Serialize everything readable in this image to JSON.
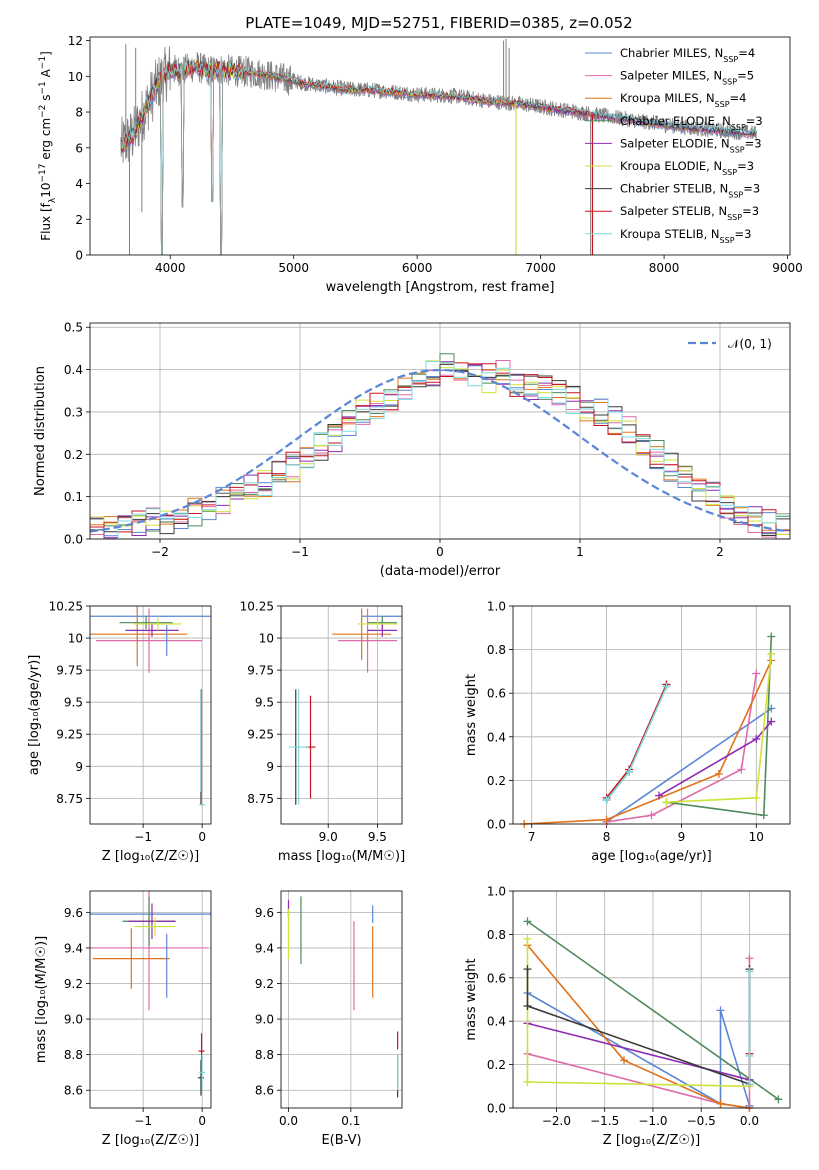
{
  "figure": {
    "title": "PLATE=1049, MJD=52751, FIBERID=0385, z=0.052"
  },
  "colors": {
    "chabrier_miles": "#5b86d6",
    "salpeter_miles": "#e06aa8",
    "kroupa_miles": "#e0731c",
    "chabrier_elodie": "#4f8a5c",
    "salpeter_elodie": "#8e2bb0",
    "kroupa_elodie": "#cfe23a",
    "chabrier_stelib": "#3a3a3a",
    "salpeter_stelib": "#c8141e",
    "kroupa_stelib": "#7fd9dc",
    "data": "#808080",
    "normal": "#5b86d6"
  },
  "legend": [
    {
      "key": "chabrier_miles",
      "pre": "Chabrier MILES, N",
      "sub": "SSP",
      "post": "=4"
    },
    {
      "key": "salpeter_miles",
      "pre": "Salpeter MILES, N",
      "sub": "SSP",
      "post": "=5"
    },
    {
      "key": "kroupa_miles",
      "pre": "Kroupa MILES, N",
      "sub": "SSP",
      "post": "=4"
    },
    {
      "key": "chabrier_elodie",
      "pre": "Chabrier ELODIE, N",
      "sub": "SSP",
      "post": "=3"
    },
    {
      "key": "salpeter_elodie",
      "pre": "Salpeter ELODIE, N",
      "sub": "SSP",
      "post": "=3"
    },
    {
      "key": "kroupa_elodie",
      "pre": "Kroupa ELODIE, N",
      "sub": "SSP",
      "post": "=3"
    },
    {
      "key": "chabrier_stelib",
      "pre": "Chabrier STELIB, N",
      "sub": "SSP",
      "post": "=3"
    },
    {
      "key": "salpeter_stelib",
      "pre": "Salpeter STELIB, N",
      "sub": "SSP",
      "post": "=3"
    },
    {
      "key": "kroupa_stelib",
      "pre": "Kroupa STELIB, N",
      "sub": "SSP",
      "post": "=3"
    }
  ],
  "chart_data": [
    {
      "id": "spectrum",
      "type": "line",
      "xlabel": "wavelength [Angstrom, rest frame]",
      "ylabel": "Flux [f",
      "ylabel_parts": [
        "Flux [f",
        "λ",
        "10",
        "−17",
        " erg cm",
        "−2",
        " s",
        "−1",
        " A",
        "−1",
        "]"
      ],
      "xlim": [
        3350,
        9020
      ],
      "ylim": [
        0,
        12.2
      ],
      "xticks": [
        4000,
        5000,
        6000,
        7000,
        8000,
        9000
      ],
      "yticks": [
        0,
        2,
        4,
        6,
        8,
        10,
        12
      ],
      "grid": false,
      "legend_position": "right",
      "data_range": [
        3600,
        8750
      ],
      "model_anchors": {
        "x": [
          3600,
          3700,
          3800,
          3900,
          4000,
          4100,
          4200,
          4300,
          4400,
          4500,
          4700,
          4900,
          5100,
          5400,
          5700,
          6000,
          6300,
          6600,
          6900,
          7200,
          7500,
          7800,
          8100,
          8400,
          8750
        ],
        "y": [
          6.1,
          6.7,
          8.2,
          9.6,
          10.4,
          10.3,
          10.6,
          10.3,
          10.4,
          10.3,
          10.2,
          9.9,
          9.6,
          9.3,
          9.2,
          9.0,
          8.9,
          8.6,
          8.4,
          8.1,
          7.8,
          7.5,
          7.2,
          7.0,
          6.8
        ]
      },
      "dips": [
        {
          "x": 3934,
          "y": 0.0
        },
        {
          "x": 4102,
          "y": 2.7
        },
        {
          "x": 4340,
          "y": 3.0
        },
        {
          "x": 4415,
          "y": 0.0
        }
      ],
      "data_spikes": [
        {
          "x": 3640,
          "y": 11.8
        },
        {
          "x": 3670,
          "y": 0.0
        },
        {
          "x": 3720,
          "y": 11.6
        },
        {
          "x": 3770,
          "y": 2.4
        },
        {
          "x": 6700,
          "y": 12.0
        },
        {
          "x": 6720,
          "y": 12.1
        },
        {
          "x": 6745,
          "y": 11.6
        },
        {
          "x": 7405,
          "y": 0.0
        }
      ],
      "cut_lines": [
        {
          "key": "kroupa_elodie",
          "x": 6800
        },
        {
          "key": "salpeter_stelib",
          "x": 7420
        }
      ]
    },
    {
      "id": "residual_histogram",
      "type": "histogram",
      "xlabel": "(data-model)/error",
      "ylabel": "Normed distribution",
      "xlim": [
        -2.5,
        2.5
      ],
      "ylim": [
        0,
        0.51
      ],
      "xticks": [
        -2,
        -1,
        0,
        1,
        2
      ],
      "yticks": [
        0.0,
        0.1,
        0.2,
        0.3,
        0.4,
        0.5
      ],
      "grid": true,
      "legend": [
        {
          "label": "𝒩(0, 1)",
          "style": "dashed"
        }
      ],
      "legend_position": "top-right",
      "bin_width": 0.1,
      "bins_start": -2.5,
      "base_heights": [
        0.02,
        0.025,
        0.03,
        0.035,
        0.04,
        0.045,
        0.055,
        0.065,
        0.075,
        0.09,
        0.1,
        0.12,
        0.135,
        0.15,
        0.17,
        0.19,
        0.22,
        0.24,
        0.27,
        0.3,
        0.31,
        0.33,
        0.35,
        0.37,
        0.39,
        0.41,
        0.4,
        0.39,
        0.38,
        0.39,
        0.37,
        0.36,
        0.35,
        0.34,
        0.33,
        0.31,
        0.3,
        0.28,
        0.26,
        0.22,
        0.2,
        0.17,
        0.15,
        0.12,
        0.1,
        0.08,
        0.06,
        0.045,
        0.035,
        0.025
      ]
    },
    {
      "id": "age_vs_Z",
      "type": "errorbar",
      "xlabel": "Z [log₁₀(Z/Z☉)]",
      "ylabel": "age [log₁₀(age/yr)]",
      "xlim": [
        -1.9,
        0.15
      ],
      "ylim": [
        8.55,
        10.25
      ],
      "xticks": [
        -1,
        0
      ],
      "yticks": [
        8.75,
        9.0,
        9.25,
        9.5,
        9.75,
        10.0,
        10.25
      ],
      "grid": true,
      "points": [
        {
          "key": "chabrier_miles",
          "x": -0.15,
          "xerr": 1.75,
          "y": 10.17,
          "yerr": 0.0
        },
        {
          "key": "salpeter_miles",
          "x": -0.9,
          "xerr": 0.9,
          "y": 9.98,
          "yerr": 0.25
        },
        {
          "key": "kroupa_miles",
          "x": -1.1,
          "xerr": 0.85,
          "y": 10.03,
          "yerr": 0.25
        },
        {
          "key": "chabrier_elodie",
          "x": -0.95,
          "xerr": 0.45,
          "y": 10.12,
          "yerr": 0.05
        },
        {
          "key": "salpeter_elodie",
          "x": -0.85,
          "xerr": 0.45,
          "y": 10.06,
          "yerr": 0.05
        },
        {
          "key": "kroupa_elodie",
          "x": -0.75,
          "xerr": 0.4,
          "y": 10.11,
          "yerr": 0.05
        },
        {
          "key": "chabrier_stelib",
          "x": -0.02,
          "xerr": 0.0,
          "y": 9.15,
          "yerr": 0.45
        },
        {
          "key": "salpeter_stelib",
          "x": -0.01,
          "xerr": 0.0,
          "y": 9.2,
          "yerr": 0.4
        },
        {
          "key": "kroupa_stelib",
          "x": 0.0,
          "xerr": 0.05,
          "y": 8.7,
          "yerr": 0.0
        },
        {
          "key": "chabrier_miles",
          "x": -0.6,
          "xerr": 0.0,
          "y": 9.98,
          "yerr": 0.12
        },
        {
          "key": "kroupa_stelib",
          "x": -0.02,
          "xerr": 0.0,
          "y": 9.2,
          "yerr": 0.4
        }
      ]
    },
    {
      "id": "age_vs_mass",
      "type": "errorbar",
      "xlabel": "mass [log₁₀(M/M☉)]",
      "ylabel": "",
      "xlim": [
        8.52,
        9.75
      ],
      "ylim": [
        8.55,
        10.25
      ],
      "xticks": [
        9.0,
        9.5
      ],
      "yticks": [
        8.75,
        9.0,
        9.25,
        9.5,
        9.75,
        10.0,
        10.25
      ],
      "grid": true,
      "points": [
        {
          "key": "chabrier_miles",
          "x": 9.59,
          "xerr": 0.25,
          "y": 10.17,
          "yerr": 0.0
        },
        {
          "key": "salpeter_miles",
          "x": 9.4,
          "xerr": 0.3,
          "y": 9.98,
          "yerr": 0.25
        },
        {
          "key": "kroupa_miles",
          "x": 9.34,
          "xerr": 0.3,
          "y": 10.03,
          "yerr": 0.2
        },
        {
          "key": "chabrier_elodie",
          "x": 9.55,
          "xerr": 0.15,
          "y": 10.12,
          "yerr": 0.05
        },
        {
          "key": "salpeter_elodie",
          "x": 9.55,
          "xerr": 0.15,
          "y": 10.06,
          "yerr": 0.05
        },
        {
          "key": "kroupa_elodie",
          "x": 9.5,
          "xerr": 0.2,
          "y": 10.11,
          "yerr": 0.05
        },
        {
          "key": "chabrier_stelib",
          "x": 8.67,
          "xerr": 0.0,
          "y": 9.15,
          "yerr": 0.45
        },
        {
          "key": "salpeter_stelib",
          "x": 8.82,
          "xerr": 0.05,
          "y": 9.15,
          "yerr": 0.4
        },
        {
          "key": "kroupa_stelib",
          "x": 8.7,
          "xerr": 0.1,
          "y": 9.15,
          "yerr": 0.45
        }
      ]
    },
    {
      "id": "mass_weight_vs_age",
      "type": "line",
      "xlabel": "age [log₁₀(age/yr)]",
      "ylabel": "mass weight",
      "xlim": [
        6.75,
        10.45
      ],
      "ylim": [
        0,
        1.0
      ],
      "xticks": [
        7,
        8,
        9,
        10
      ],
      "yticks": [
        0.0,
        0.2,
        0.4,
        0.6,
        0.8,
        1.0
      ],
      "grid": true,
      "series": [
        {
          "key": "chabrier_miles",
          "x": [
            8.0,
            10.2
          ],
          "y": [
            0.01,
            0.53
          ]
        },
        {
          "key": "salpeter_miles",
          "x": [
            8.0,
            8.6,
            9.8,
            10.0
          ],
          "y": [
            0.01,
            0.04,
            0.25,
            0.69
          ]
        },
        {
          "key": "kroupa_miles",
          "x": [
            6.9,
            8.0,
            9.5,
            10.2
          ],
          "y": [
            0.0,
            0.02,
            0.23,
            0.75
          ]
        },
        {
          "key": "chabrier_elodie",
          "x": [
            8.8,
            10.1,
            10.2
          ],
          "y": [
            0.1,
            0.04,
            0.86
          ]
        },
        {
          "key": "salpeter_elodie",
          "x": [
            8.7,
            10.0,
            10.2
          ],
          "y": [
            0.13,
            0.39,
            0.47
          ]
        },
        {
          "key": "kroupa_elodie",
          "x": [
            8.8,
            10.0,
            10.2
          ],
          "y": [
            0.1,
            0.12,
            0.78
          ]
        },
        {
          "key": "chabrier_stelib",
          "x": [
            8.0,
            8.3,
            8.8
          ],
          "y": [
            0.11,
            0.24,
            0.64
          ]
        },
        {
          "key": "salpeter_stelib",
          "x": [
            8.0,
            8.3,
            8.8
          ],
          "y": [
            0.12,
            0.25,
            0.64
          ]
        },
        {
          "key": "kroupa_stelib",
          "x": [
            8.0,
            8.3,
            8.8
          ],
          "y": [
            0.11,
            0.24,
            0.63
          ]
        }
      ]
    },
    {
      "id": "mass_vs_Z",
      "type": "errorbar",
      "xlabel": "Z [log₁₀(Z/Z☉)]",
      "ylabel": "mass [log₁₀(M/M☉)]",
      "xlim": [
        -1.9,
        0.15
      ],
      "ylim": [
        8.5,
        9.72
      ],
      "xticks": [
        -1,
        0
      ],
      "yticks": [
        8.6,
        8.8,
        9.0,
        9.2,
        9.4,
        9.6
      ],
      "grid": true,
      "points": [
        {
          "key": "chabrier_miles",
          "x": -0.85,
          "xerr": 1.05,
          "y": 9.59,
          "yerr": 0.0
        },
        {
          "key": "salpeter_miles",
          "x": -0.9,
          "xerr": 1.0,
          "y": 9.4,
          "yerr": 0.35
        },
        {
          "key": "kroupa_miles",
          "x": -1.2,
          "xerr": 0.65,
          "y": 9.34,
          "yerr": 0.17
        },
        {
          "key": "chabrier_elodie",
          "x": -0.9,
          "xerr": 0.45,
          "y": 9.55,
          "yerr": 0.14
        },
        {
          "key": "salpeter_elodie",
          "x": -0.85,
          "xerr": 0.4,
          "y": 9.55,
          "yerr": 0.1
        },
        {
          "key": "kroupa_elodie",
          "x": -0.8,
          "xerr": 0.35,
          "y": 9.52,
          "yerr": 0.05
        },
        {
          "key": "chabrier_stelib",
          "x": -0.02,
          "xerr": 0.05,
          "y": 8.67,
          "yerr": 0.1
        },
        {
          "key": "salpeter_stelib",
          "x": -0.01,
          "xerr": 0.05,
          "y": 8.82,
          "yerr": 0.1
        },
        {
          "key": "kroupa_stelib",
          "x": 0.0,
          "xerr": 0.05,
          "y": 8.7,
          "yerr": 0.1
        },
        {
          "key": "chabrier_miles",
          "x": -0.6,
          "xerr": 0.0,
          "y": 9.3,
          "yerr": 0.18
        }
      ]
    },
    {
      "id": "mass_vs_ebv",
      "type": "errorbar",
      "xlabel": "E(B-V)",
      "ylabel": "",
      "xlim": [
        -0.012,
        0.182
      ],
      "ylim": [
        8.5,
        9.72
      ],
      "xticks": [
        0.0,
        0.1
      ],
      "yticks": [
        8.6,
        8.8,
        9.0,
        9.2,
        9.4,
        9.6
      ],
      "grid": true,
      "points": [
        {
          "key": "chabrier_miles",
          "x": 0.135,
          "xerr": 0.0,
          "y": 9.59,
          "yerr": 0.05
        },
        {
          "key": "salpeter_miles",
          "x": 0.105,
          "xerr": 0.0,
          "y": 9.3,
          "yerr": 0.25
        },
        {
          "key": "kroupa_miles",
          "x": 0.135,
          "xerr": 0.0,
          "y": 9.32,
          "yerr": 0.2
        },
        {
          "key": "chabrier_elodie",
          "x": 0.02,
          "xerr": 0.0,
          "y": 9.5,
          "yerr": 0.19
        },
        {
          "key": "salpeter_elodie",
          "x": 0.0,
          "xerr": 0.0,
          "y": 9.62,
          "yerr": 0.05
        },
        {
          "key": "kroupa_elodie",
          "x": 0.0,
          "xerr": 0.0,
          "y": 9.48,
          "yerr": 0.14
        },
        {
          "key": "chabrier_stelib",
          "x": 0.175,
          "xerr": 0.0,
          "y": 8.68,
          "yerr": 0.12
        },
        {
          "key": "salpeter_stelib",
          "x": 0.175,
          "xerr": 0.0,
          "y": 8.88,
          "yerr": 0.05
        },
        {
          "key": "kroupa_stelib",
          "x": 0.175,
          "xerr": 0.0,
          "y": 8.7,
          "yerr": 0.1
        }
      ]
    },
    {
      "id": "mass_weight_vs_Z",
      "type": "line",
      "xlabel": "Z [log₁₀(Z/Z☉)]",
      "ylabel": "mass weight",
      "xlim": [
        -2.45,
        0.42
      ],
      "ylim": [
        0,
        1.0
      ],
      "xticks": [
        -2.0,
        -1.5,
        -1.0,
        -0.5,
        0.0
      ],
      "yticks": [
        0.0,
        0.2,
        0.4,
        0.6,
        0.8,
        1.0
      ],
      "grid": true,
      "series": [
        {
          "key": "chabrier_miles",
          "x": [
            -2.3,
            -0.3,
            -0.3,
            0.0
          ],
          "y": [
            0.53,
            0.02,
            0.45,
            0.01
          ]
        },
        {
          "key": "salpeter_miles",
          "x": [
            -2.3,
            -0.3,
            0.0,
            0.0
          ],
          "y": [
            0.25,
            0.02,
            0.0,
            0.69
          ]
        },
        {
          "key": "kroupa_miles",
          "x": [
            -2.3,
            -1.3,
            -0.3,
            0.0
          ],
          "y": [
            0.75,
            0.22,
            0.02,
            0.0
          ]
        },
        {
          "key": "chabrier_elodie",
          "x": [
            -2.3,
            0.3
          ],
          "y": [
            0.86,
            0.04
          ]
        },
        {
          "key": "salpeter_elodie",
          "x": [
            -2.3,
            0.0
          ],
          "y": [
            0.39,
            0.13
          ]
        },
        {
          "key": "kroupa_elodie",
          "x": [
            -2.3,
            -2.3,
            0.0
          ],
          "y": [
            0.78,
            0.12,
            0.1
          ]
        },
        {
          "key": "chabrier_stelib",
          "x": [
            -2.3,
            -2.3,
            0.0,
            0.0
          ],
          "y": [
            0.64,
            0.47,
            0.11,
            0.64
          ]
        },
        {
          "key": "salpeter_stelib",
          "x": [
            0.0,
            0.0
          ],
          "y": [
            0.11,
            0.25
          ]
        },
        {
          "key": "kroupa_stelib",
          "x": [
            0.0,
            0.0,
            0.0
          ],
          "y": [
            0.11,
            0.24,
            0.63
          ]
        }
      ]
    }
  ]
}
